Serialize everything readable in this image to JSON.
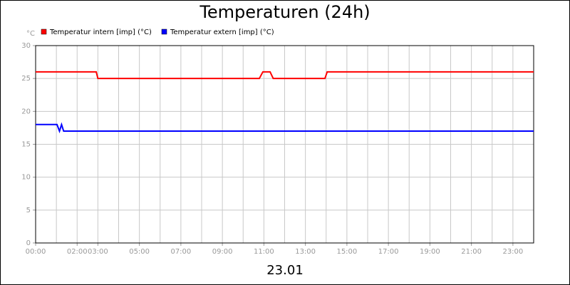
{
  "chart_data": {
    "type": "line",
    "title": "Temperaturen (24h)",
    "subtitle": "23.01",
    "y_unit": "°C",
    "series": [
      {
        "name": "Temperatur intern [imp] (°C)",
        "color": "#ff0000",
        "x": [
          0,
          2.92,
          3.0,
          10.78,
          10.95,
          11.3,
          11.45,
          13.94,
          14.05,
          24
        ],
        "values": [
          26,
          26,
          25,
          25,
          26,
          26,
          25,
          25,
          26,
          26
        ]
      },
      {
        "name": "Temperatur extern [imp] (°C)",
        "color": "#0000ff",
        "x": [
          0,
          1.03,
          1.15,
          1.25,
          1.35,
          24
        ],
        "values": [
          18,
          18,
          17,
          18,
          17,
          17
        ]
      }
    ],
    "xlim": [
      0,
      24
    ],
    "xticks": [
      {
        "value": 0,
        "label": "00:00"
      },
      {
        "value": 2,
        "label": "02:00"
      },
      {
        "value": 3,
        "label": "03:00"
      },
      {
        "value": 5,
        "label": "05:00"
      },
      {
        "value": 7,
        "label": "07:00"
      },
      {
        "value": 9,
        "label": "09:00"
      },
      {
        "value": 11,
        "label": "11:00"
      },
      {
        "value": 13,
        "label": "13:00"
      },
      {
        "value": 15,
        "label": "15:00"
      },
      {
        "value": 17,
        "label": "17:00"
      },
      {
        "value": 19,
        "label": "19:00"
      },
      {
        "value": 21,
        "label": "21:00"
      },
      {
        "value": 23,
        "label": "23:00"
      }
    ],
    "xgrid": [
      1,
      2,
      3,
      4,
      5,
      6,
      7,
      8,
      9,
      10,
      11,
      12,
      13,
      14,
      15,
      16,
      17,
      18,
      19,
      20,
      21,
      22,
      23
    ],
    "ylim": [
      0,
      30
    ],
    "yticks": [
      0,
      5,
      10,
      15,
      20,
      25,
      30
    ],
    "grid": true
  }
}
